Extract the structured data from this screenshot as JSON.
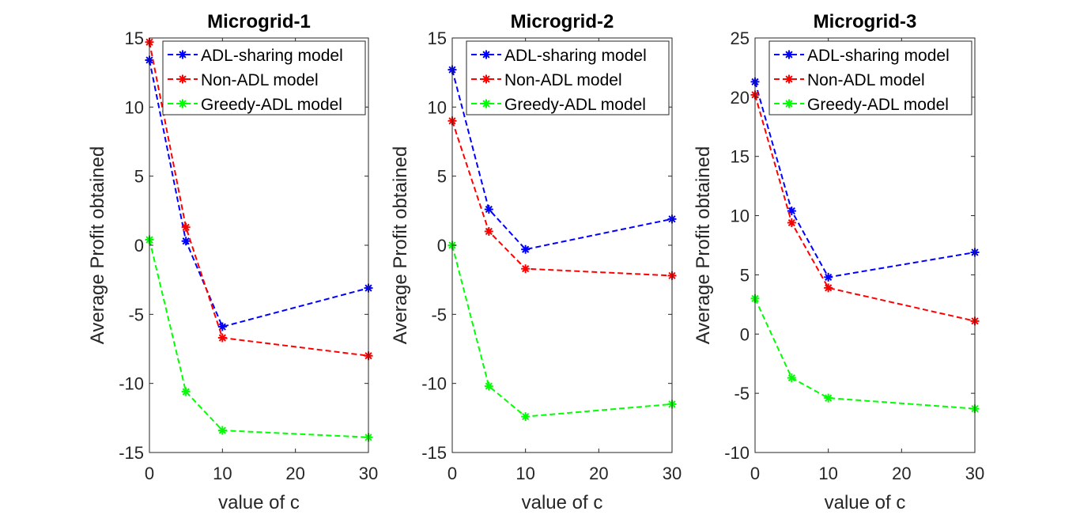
{
  "chart_data": [
    {
      "type": "line",
      "title": "Microgrid-1",
      "xlabel": "value of c",
      "ylabel": "Average Profit obtained",
      "x_ticks": [
        "0",
        "10",
        "20",
        "30"
      ],
      "xlim": [
        0,
        30
      ],
      "y_ticks": [
        "-15",
        "-10",
        "-5",
        "0",
        "5",
        "10",
        "15"
      ],
      "ylim": [
        -15,
        15
      ],
      "x": [
        0,
        5,
        10,
        30
      ],
      "series": [
        {
          "name": "ADL-sharing model",
          "color": "#0000ff",
          "values": [
            13.4,
            0.3,
            -5.9,
            -3.1
          ]
        },
        {
          "name": "Non-ADL model",
          "color": "#ff0000",
          "values": [
            14.7,
            1.3,
            -6.7,
            -8.0
          ]
        },
        {
          "name": "Greedy-ADL model",
          "color": "#00ff00",
          "values": [
            0.4,
            -10.6,
            -13.4,
            -13.9
          ]
        }
      ],
      "legend": "top-right"
    },
    {
      "type": "line",
      "title": "Microgrid-2",
      "xlabel": "value of c",
      "ylabel": "Average Profit obtained",
      "x_ticks": [
        "0",
        "10",
        "20",
        "30"
      ],
      "xlim": [
        0,
        30
      ],
      "y_ticks": [
        "-15",
        "-10",
        "-5",
        "0",
        "5",
        "10",
        "15"
      ],
      "ylim": [
        -15,
        15
      ],
      "x": [
        0,
        5,
        10,
        30
      ],
      "series": [
        {
          "name": "ADL-sharing model",
          "color": "#0000ff",
          "values": [
            12.7,
            2.6,
            -0.3,
            1.9
          ]
        },
        {
          "name": "Non-ADL model",
          "color": "#ff0000",
          "values": [
            9.0,
            1.0,
            -1.7,
            -2.2
          ]
        },
        {
          "name": "Greedy-ADL model",
          "color": "#00ff00",
          "values": [
            0.0,
            -10.2,
            -12.4,
            -11.5
          ]
        }
      ],
      "legend": "top-right"
    },
    {
      "type": "line",
      "title": "Microgrid-3",
      "xlabel": "value of c",
      "ylabel": "Average Profit obtained",
      "x_ticks": [
        "0",
        "10",
        "20",
        "30"
      ],
      "xlim": [
        0,
        30
      ],
      "y_ticks": [
        "-10",
        "-5",
        "0",
        "5",
        "10",
        "15",
        "20",
        "25"
      ],
      "ylim": [
        -10,
        25
      ],
      "x": [
        0,
        5,
        10,
        30
      ],
      "series": [
        {
          "name": "ADL-sharing model",
          "color": "#0000ff",
          "values": [
            21.3,
            10.4,
            4.8,
            6.9
          ]
        },
        {
          "name": "Non-ADL model",
          "color": "#ff0000",
          "values": [
            20.2,
            9.4,
            3.9,
            1.1
          ]
        },
        {
          "name": "Greedy-ADL model",
          "color": "#00ff00",
          "values": [
            3.0,
            -3.7,
            -5.4,
            -6.3
          ]
        }
      ],
      "legend": "top-right"
    }
  ]
}
